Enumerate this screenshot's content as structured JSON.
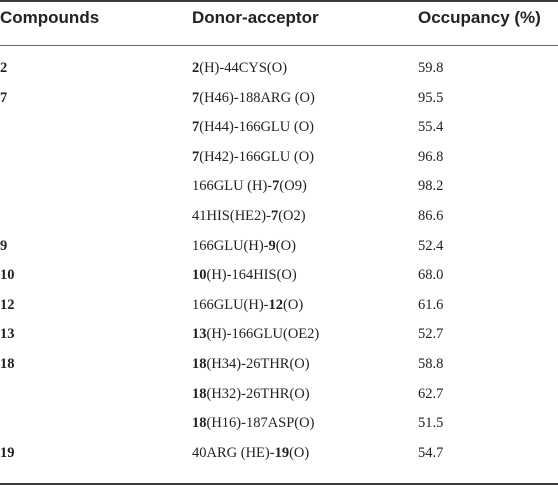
{
  "headers": {
    "compounds": "Compounds",
    "donor_acceptor": "Donor-acceptor",
    "occupancy": "Occupancy (%)"
  },
  "rows": [
    {
      "compound": "2",
      "d_bold": "2",
      "d_rest": "(H)-44CYS(O)",
      "d_pre": "",
      "occupancy": "59.8"
    },
    {
      "compound": "7",
      "d_bold": "7",
      "d_rest": "(H46)-188ARG (O)",
      "d_pre": "",
      "occupancy": "95.5"
    },
    {
      "compound": "",
      "d_bold": "7",
      "d_rest": "(H44)-166GLU (O)",
      "d_pre": "",
      "occupancy": "55.4"
    },
    {
      "compound": "",
      "d_bold": "7",
      "d_rest": "(H42)-166GLU (O)",
      "d_pre": "",
      "occupancy": "96.8"
    },
    {
      "compound": "",
      "d_pre": "166GLU (H)-",
      "d_bold": "7",
      "d_rest": "(O9)",
      "occupancy": "98.2"
    },
    {
      "compound": "",
      "d_pre": "41HIS(HE2)-",
      "d_bold": "7",
      "d_rest": "(O2)",
      "occupancy": "86.6"
    },
    {
      "compound": "9",
      "d_pre": "166GLU(H)-",
      "d_bold": "9",
      "d_rest": "(O)",
      "occupancy": "52.4"
    },
    {
      "compound": "10",
      "d_bold": "10",
      "d_rest": "(H)-164HIS(O)",
      "d_pre": "",
      "occupancy": "68.0"
    },
    {
      "compound": "12",
      "d_pre": "166GLU(H)-",
      "d_bold": "12",
      "d_rest": "(O)",
      "occupancy": "61.6"
    },
    {
      "compound": "13",
      "d_bold": "13",
      "d_rest": "(H)-166GLU(OE2)",
      "d_pre": "",
      "occupancy": "52.7"
    },
    {
      "compound": "18",
      "d_bold": "18",
      "d_rest": "(H34)-26THR(O)",
      "d_pre": "",
      "occupancy": "58.8"
    },
    {
      "compound": "",
      "d_bold": "18",
      "d_rest": "(H32)-26THR(O)",
      "d_pre": "",
      "occupancy": "62.7"
    },
    {
      "compound": "",
      "d_bold": "18",
      "d_rest": "(H16)-187ASP(O)",
      "d_pre": "",
      "occupancy": "51.5"
    },
    {
      "compound": "19",
      "d_pre": "40ARG (HE)-",
      "d_bold": "19",
      "d_rest": "(O)",
      "occupancy": "54.7"
    }
  ]
}
